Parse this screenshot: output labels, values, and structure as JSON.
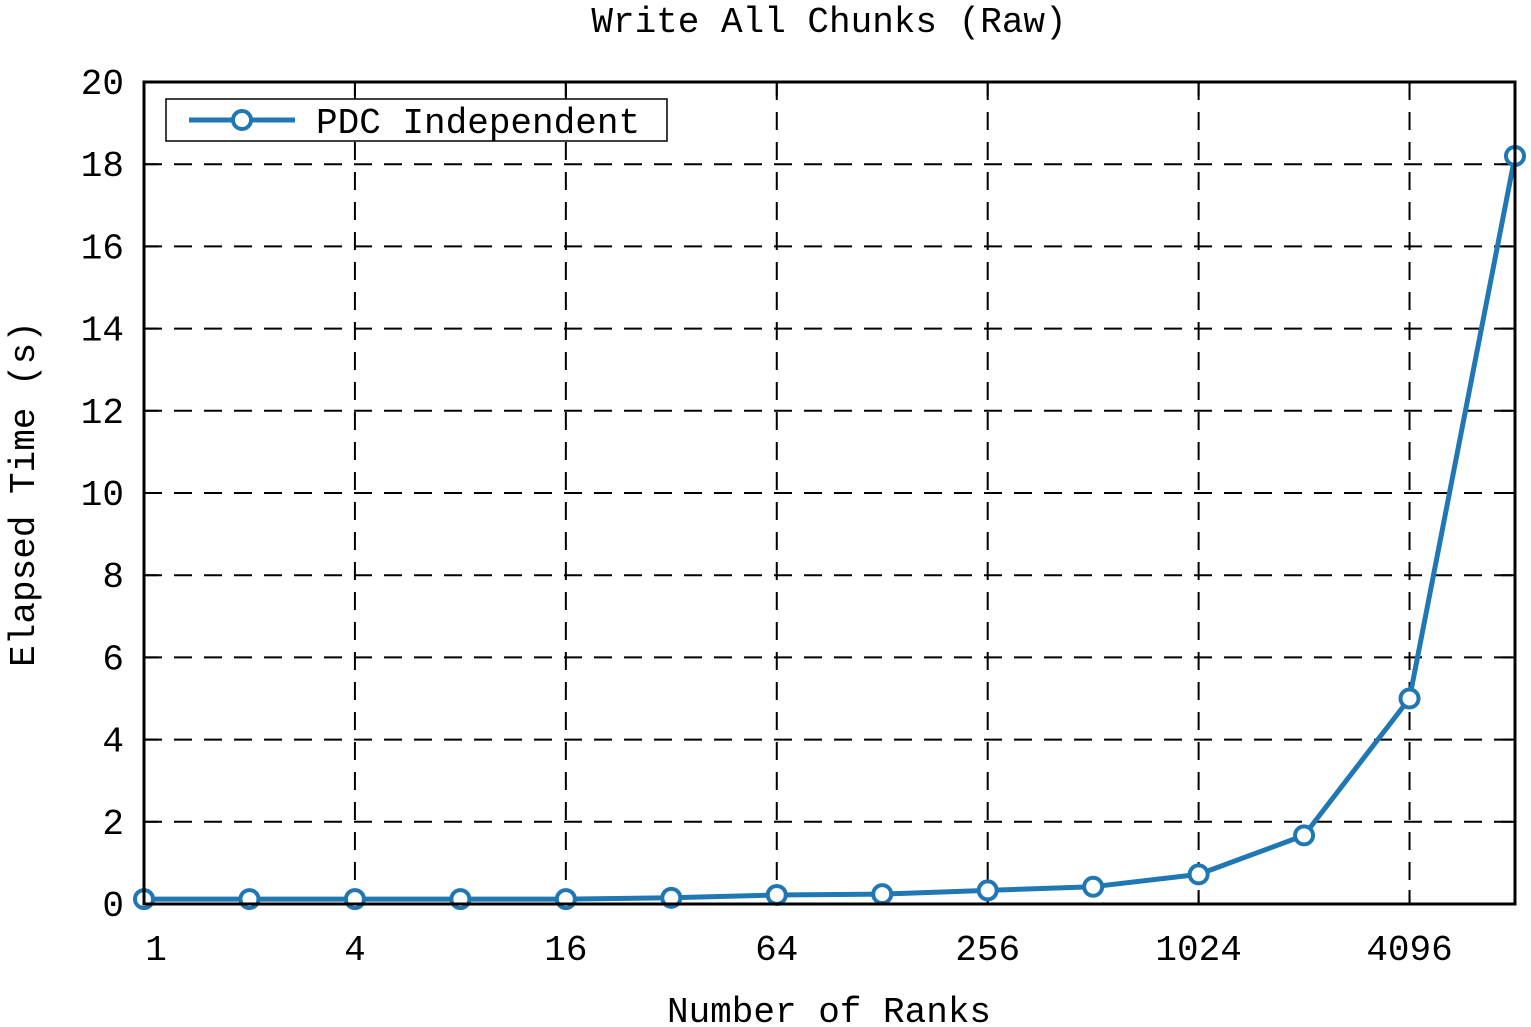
{
  "chart_data": {
    "type": "line",
    "title": "Write All Chunks (Raw)",
    "xlabel": "Number of Ranks",
    "ylabel": "Elapsed Time (s)",
    "x_scale": "log2",
    "x_ticks": [
      "1",
      "4",
      "16",
      "64",
      "256",
      "1024",
      "4096"
    ],
    "x_tick_values": [
      1,
      4,
      16,
      64,
      256,
      1024,
      4096
    ],
    "y_ticks": [
      "0",
      "2",
      "4",
      "6",
      "8",
      "10",
      "12",
      "14",
      "16",
      "18",
      "20"
    ],
    "ylim": [
      0,
      20
    ],
    "xlim": [
      1,
      8192
    ],
    "grid": true,
    "legend_position": "top-left",
    "series": [
      {
        "name": "PDC Independent",
        "color": "#1f77b4",
        "marker": "circle",
        "x": [
          1,
          2,
          4,
          8,
          16,
          32,
          64,
          128,
          256,
          512,
          1024,
          2048,
          4096,
          8192
        ],
        "y": [
          0.12,
          0.12,
          0.12,
          0.12,
          0.12,
          0.15,
          0.22,
          0.24,
          0.33,
          0.42,
          0.72,
          1.67,
          5.0,
          18.2
        ]
      }
    ]
  }
}
